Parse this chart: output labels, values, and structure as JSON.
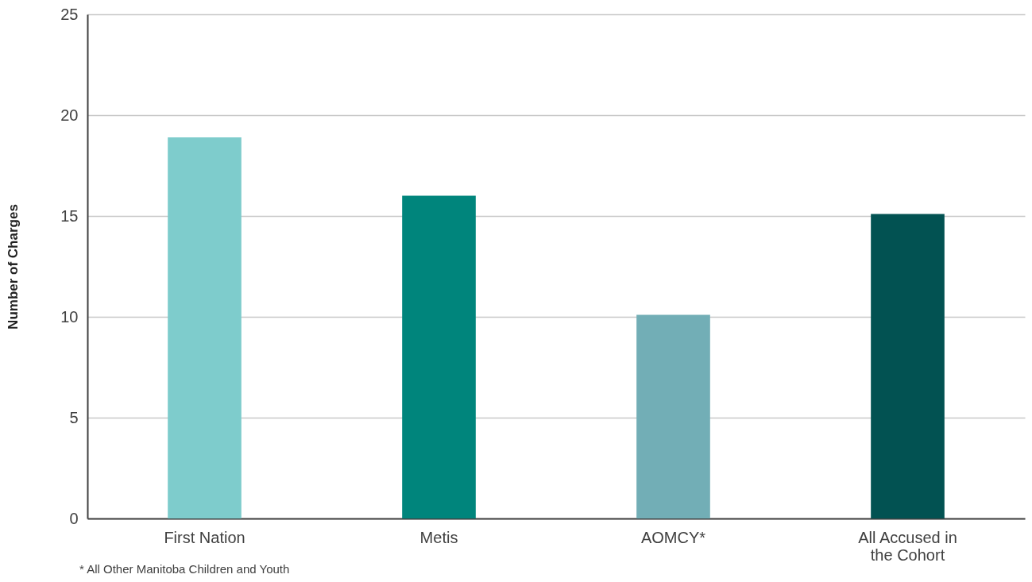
{
  "chart_data": {
    "type": "bar",
    "ylabel": "Number of Charges",
    "categories": [
      "First Nation",
      "Metis",
      "AOMCY*",
      "All Accused in the Cohort"
    ],
    "values": [
      18.9,
      16.0,
      10.1,
      15.1
    ],
    "colors": [
      "#7ecccc",
      "#00857c",
      "#72aeb6",
      "#025252"
    ],
    "ylim": [
      0,
      25
    ],
    "yticks": [
      0,
      5,
      10,
      15,
      20,
      25
    ],
    "grid": "y",
    "annotations": [
      "* All Other Manitoba Children and Youth"
    ]
  }
}
